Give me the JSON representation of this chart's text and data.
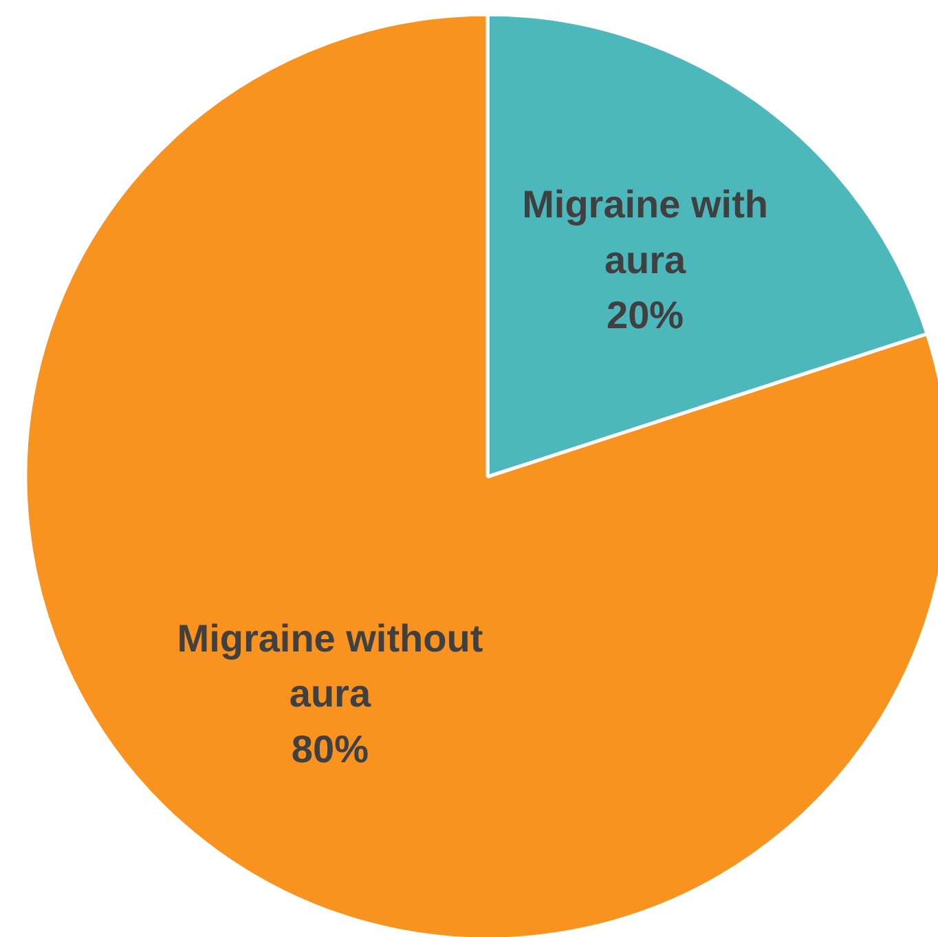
{
  "chart_data": {
    "type": "pie",
    "categories": [
      "Migraine with aura",
      "Migraine without aura"
    ],
    "values": [
      20,
      80
    ],
    "colors": [
      "#4db8bc",
      "#f7931e"
    ],
    "value_labels": [
      "20%",
      "80%"
    ]
  }
}
